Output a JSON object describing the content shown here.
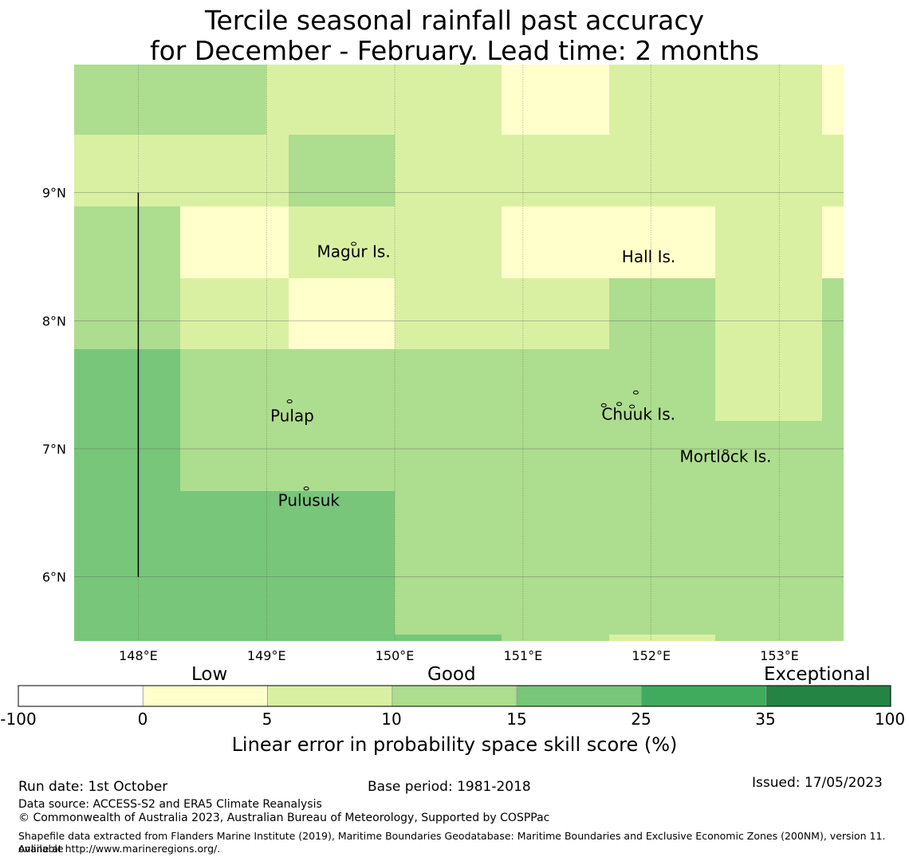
{
  "title_line1": "Tercile seasonal rainfall past accuracy",
  "title_line2": "for December - February. Lead time: 2 months",
  "colors": {
    "c0": "#ffffcc",
    "c5": "#d9f0a3",
    "c10": "#addd8e",
    "c15": "#78c679",
    "c25": "#41ab5d",
    "c35": "#238443",
    "neg": "#ffffff"
  },
  "chart_data": {
    "type": "heatmap",
    "xlim": [
      147.5,
      153.5
    ],
    "ylim": [
      5.5,
      10.0
    ],
    "x_ticks": [
      148,
      149,
      150,
      151,
      152,
      153
    ],
    "x_tick_labels": [
      "148°E",
      "149°E",
      "150°E",
      "151°E",
      "152°E",
      "153°E"
    ],
    "y_ticks": [
      6,
      7,
      8,
      9
    ],
    "y_tick_labels": [
      "6°N",
      "7°N",
      "8°N",
      "9°N"
    ],
    "cells": [
      {
        "x0": 147.5,
        "x1": 149.0,
        "y0": 9.45,
        "y1": 10.0,
        "v": "c10"
      },
      {
        "x0": 149.0,
        "x1": 150.83,
        "y0": 9.45,
        "y1": 10.0,
        "v": "c5"
      },
      {
        "x0": 150.83,
        "x1": 151.67,
        "y0": 9.45,
        "y1": 10.0,
        "v": "c0"
      },
      {
        "x0": 151.67,
        "x1": 153.33,
        "y0": 9.45,
        "y1": 10.0,
        "v": "c5"
      },
      {
        "x0": 153.33,
        "x1": 153.5,
        "y0": 9.45,
        "y1": 10.0,
        "v": "c0"
      },
      {
        "x0": 147.5,
        "x1": 149.17,
        "y0": 8.89,
        "y1": 9.45,
        "v": "c5"
      },
      {
        "x0": 149.17,
        "x1": 150.0,
        "y0": 8.89,
        "y1": 9.45,
        "v": "c10"
      },
      {
        "x0": 150.0,
        "x1": 153.5,
        "y0": 8.89,
        "y1": 9.45,
        "v": "c5"
      },
      {
        "x0": 147.5,
        "x1": 148.33,
        "y0": 7.78,
        "y1": 8.89,
        "v": "c10"
      },
      {
        "x0": 148.33,
        "x1": 149.17,
        "y0": 8.33,
        "y1": 8.89,
        "v": "c0"
      },
      {
        "x0": 149.17,
        "x1": 150.0,
        "y0": 8.33,
        "y1": 8.89,
        "v": "c5"
      },
      {
        "x0": 150.0,
        "x1": 150.83,
        "y0": 8.33,
        "y1": 8.89,
        "v": "c5"
      },
      {
        "x0": 150.83,
        "x1": 152.5,
        "y0": 8.33,
        "y1": 8.89,
        "v": "c0"
      },
      {
        "x0": 152.5,
        "x1": 153.33,
        "y0": 8.33,
        "y1": 8.89,
        "v": "c5"
      },
      {
        "x0": 153.33,
        "x1": 153.5,
        "y0": 8.33,
        "y1": 8.89,
        "v": "c0"
      },
      {
        "x0": 148.33,
        "x1": 149.17,
        "y0": 7.78,
        "y1": 8.33,
        "v": "c5"
      },
      {
        "x0": 149.17,
        "x1": 150.0,
        "y0": 7.78,
        "y1": 8.33,
        "v": "c0"
      },
      {
        "x0": 150.0,
        "x1": 151.67,
        "y0": 7.78,
        "y1": 8.33,
        "v": "c5"
      },
      {
        "x0": 151.67,
        "x1": 152.5,
        "y0": 7.78,
        "y1": 8.33,
        "v": "c10"
      },
      {
        "x0": 152.5,
        "x1": 153.33,
        "y0": 7.78,
        "y1": 8.33,
        "v": "c5"
      },
      {
        "x0": 153.33,
        "x1": 153.5,
        "y0": 7.78,
        "y1": 8.33,
        "v": "c10"
      },
      {
        "x0": 147.5,
        "x1": 148.33,
        "y0": 5.5,
        "y1": 7.78,
        "v": "c15"
      },
      {
        "x0": 148.33,
        "x1": 152.5,
        "y0": 6.67,
        "y1": 7.78,
        "v": "c10"
      },
      {
        "x0": 152.5,
        "x1": 153.33,
        "y0": 7.22,
        "y1": 7.78,
        "v": "c5"
      },
      {
        "x0": 153.33,
        "x1": 153.5,
        "y0": 7.22,
        "y1": 7.78,
        "v": "c10"
      },
      {
        "x0": 152.5,
        "x1": 153.5,
        "y0": 6.67,
        "y1": 7.22,
        "v": "c10"
      },
      {
        "x0": 148.33,
        "x1": 150.0,
        "y0": 5.5,
        "y1": 6.67,
        "v": "c15"
      },
      {
        "x0": 150.0,
        "x1": 153.5,
        "y0": 5.55,
        "y1": 6.67,
        "v": "c10"
      },
      {
        "x0": 150.0,
        "x1": 150.83,
        "y0": 5.5,
        "y1": 5.55,
        "v": "c15"
      },
      {
        "x0": 150.83,
        "x1": 151.67,
        "y0": 5.5,
        "y1": 5.55,
        "v": "c10"
      },
      {
        "x0": 151.67,
        "x1": 152.5,
        "y0": 5.5,
        "y1": 5.55,
        "v": "c5"
      },
      {
        "x0": 152.5,
        "x1": 153.5,
        "y0": 5.5,
        "y1": 5.55,
        "v": "c10"
      }
    ],
    "boundary_line": {
      "lon": 148.0,
      "lat_from": 6.0,
      "lat_to": 9.0
    },
    "annotations": [
      {
        "text": "Magur Is.",
        "lon": 149.68,
        "lat": 8.53
      },
      {
        "text": "Hall Is.",
        "lon": 151.98,
        "lat": 8.49
      },
      {
        "text": "Pulap",
        "lon": 149.2,
        "lat": 7.25
      },
      {
        "text": "Chuuk Is.",
        "lon": 151.9,
        "lat": 7.26
      },
      {
        "text": "Mortlock Is.",
        "lon": 152.58,
        "lat": 6.93
      },
      {
        "text": "Pulusuk",
        "lon": 149.33,
        "lat": 6.59
      }
    ],
    "islands": [
      {
        "lon": 149.18,
        "lat": 7.37
      },
      {
        "lon": 149.68,
        "lat": 8.6
      },
      {
        "lon": 149.31,
        "lat": 6.69
      },
      {
        "lon": 151.63,
        "lat": 7.34
      },
      {
        "lon": 151.75,
        "lat": 7.35
      },
      {
        "lon": 151.85,
        "lat": 7.33
      },
      {
        "lon": 151.88,
        "lat": 7.44
      },
      {
        "lon": 152.58,
        "lat": 6.98
      }
    ],
    "colorbar": {
      "boundaries": [
        "-100",
        "0",
        "5",
        "10",
        "15",
        "25",
        "35",
        "100"
      ],
      "colors": [
        "neg",
        "c0",
        "c5",
        "c10",
        "c15",
        "c25",
        "c35"
      ],
      "category_labels": [
        "Low",
        "Good",
        "Exceptional"
      ],
      "label": "Linear error in probability space skill score (%)"
    }
  },
  "footer": {
    "run_date": "Run date: 1st October",
    "base_period": "Base period: 1981-2018",
    "issued": "Issued: 17/05/2023",
    "data_source": "Data source: ACCESS-S2 and ERA5 Climate Reanalysis",
    "copyright": "© Commonwealth of Australia 2023, Australian Bureau of Meteorology, Supported by COSPPac",
    "shapefile_line1": "Shapefile data extracted from Flanders Marine Institute (2019), Maritime Boundaries Geodatabase: Maritime Boundaries and Exclusive Economic Zones (200NM), version 11. Available",
    "shapefile_line2": "online at http://www.marineregions.org/."
  }
}
